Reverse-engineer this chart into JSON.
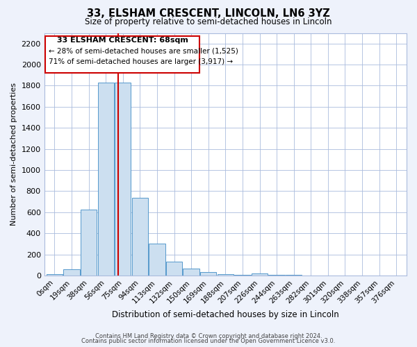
{
  "title": "33, ELSHAM CRESCENT, LINCOLN, LN6 3YZ",
  "subtitle": "Size of property relative to semi-detached houses in Lincoln",
  "xlabel": "Distribution of semi-detached houses by size in Lincoln",
  "ylabel": "Number of semi-detached properties",
  "annotation_line1": "33 ELSHAM CRESCENT: 68sqm",
  "annotation_line2": "← 28% of semi-detached houses are smaller (1,525)",
  "annotation_line3": "71% of semi-detached houses are larger (3,917) →",
  "footer_line1": "Contains HM Land Registry data © Crown copyright and database right 2024.",
  "footer_line2": "Contains public sector information licensed under the Open Government Licence v3.0.",
  "bar_labels": [
    "0sqm",
    "19sqm",
    "38sqm",
    "56sqm",
    "75sqm",
    "94sqm",
    "113sqm",
    "132sqm",
    "150sqm",
    "169sqm",
    "188sqm",
    "207sqm",
    "226sqm",
    "244sqm",
    "263sqm",
    "282sqm",
    "301sqm",
    "320sqm",
    "338sqm",
    "357sqm",
    "376sqm"
  ],
  "bar_heights": [
    15,
    60,
    625,
    1830,
    1830,
    740,
    300,
    130,
    65,
    35,
    15,
    5,
    20,
    5,
    5,
    0,
    0,
    0,
    0,
    0,
    0
  ],
  "bar_color": "#ccdff0",
  "bar_edge_color": "#5599cc",
  "property_line_x": 3.72,
  "property_line_color": "#cc0000",
  "ylim": [
    0,
    2300
  ],
  "yticks": [
    0,
    200,
    400,
    600,
    800,
    1000,
    1200,
    1400,
    1600,
    1800,
    2000,
    2200
  ],
  "background_color": "#eef2fb",
  "plot_background": "#ffffff",
  "grid_color": "#aabbdd",
  "annotation_box_color": "#ffffff",
  "annotation_box_edge": "#cc0000"
}
